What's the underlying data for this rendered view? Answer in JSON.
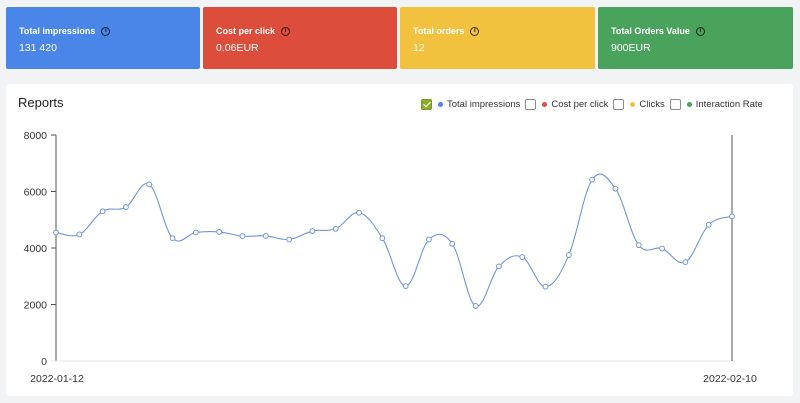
{
  "cards": [
    {
      "title": "Total impressions",
      "value": "131 420",
      "color": "#4a86e8"
    },
    {
      "title": "Cost per click",
      "value": "0.06EUR",
      "color": "#dc4d3b"
    },
    {
      "title": "Total orders",
      "value": "12",
      "color": "#f2c13d"
    },
    {
      "title": "Total Orders Value",
      "value": "900EUR",
      "color": "#4aa35c"
    }
  ],
  "info_glyph": "i",
  "reports": {
    "title": "Reports",
    "legend": [
      {
        "label": "Total impressions",
        "checked": true,
        "color": "#4a86e8"
      },
      {
        "label": "Cost per click",
        "checked": false,
        "color": "#dc4d3b"
      },
      {
        "label": "Clicks",
        "checked": false,
        "color": "#f2c13d"
      },
      {
        "label": "Interaction Rate",
        "checked": false,
        "color": "#4aa35c"
      }
    ]
  },
  "chart_data": {
    "type": "line",
    "x_start_label": "2022-01-12",
    "x_end_label": "2022-02-10",
    "yticks": [
      "0",
      "2000",
      "4000",
      "6000",
      "8000"
    ],
    "ylim": [
      0,
      8000
    ],
    "grid": false,
    "series": [
      {
        "name": "Total impressions",
        "color": "#6f95dc",
        "values": [
          4550,
          4480,
          5300,
          5450,
          6250,
          4350,
          4550,
          4570,
          4420,
          4430,
          4300,
          4600,
          4680,
          5250,
          4350,
          2650,
          4300,
          4150,
          1950,
          3350,
          3680,
          2630,
          3750,
          6420,
          6100,
          4100,
          3980,
          3500,
          4820,
          5120
        ]
      }
    ]
  }
}
